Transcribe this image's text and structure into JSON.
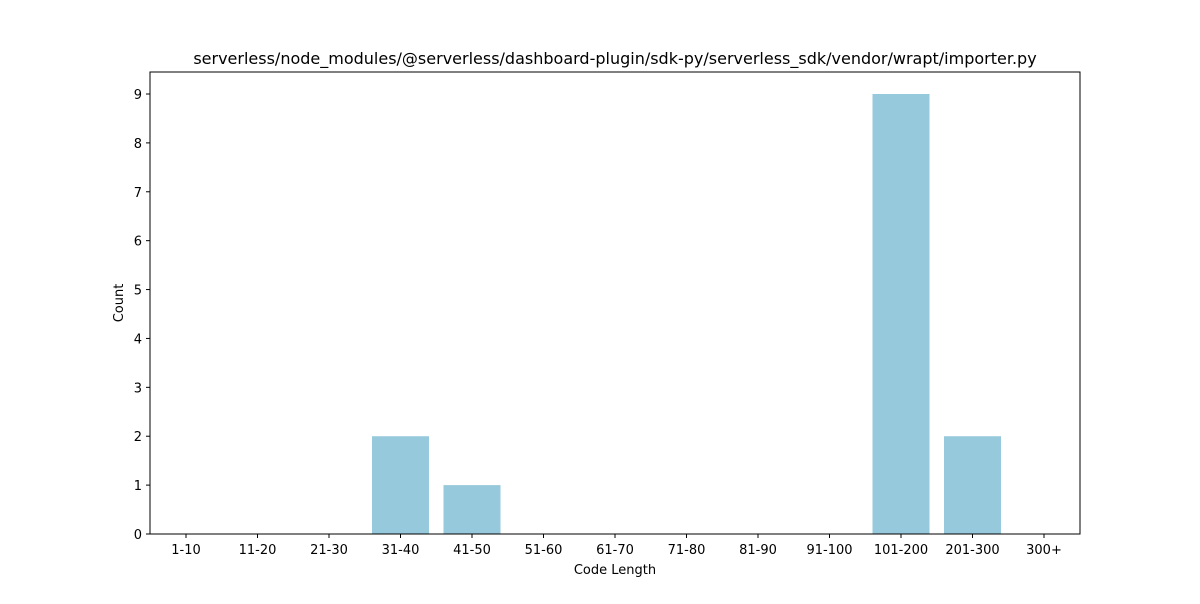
{
  "chart_data": {
    "type": "bar",
    "title": "serverless/node_modules/@serverless/dashboard-plugin/sdk-py/serverless_sdk/vendor/wrapt/importer.py",
    "xlabel": "Code Length",
    "ylabel": "Count",
    "categories": [
      "1-10",
      "11-20",
      "21-30",
      "31-40",
      "41-50",
      "51-60",
      "61-70",
      "71-80",
      "81-90",
      "91-100",
      "101-200",
      "201-300",
      "300+"
    ],
    "values": [
      0,
      0,
      0,
      2,
      1,
      0,
      0,
      0,
      0,
      0,
      9,
      2,
      0
    ],
    "ylim": [
      0,
      9.45
    ],
    "yticks": [
      0,
      1,
      2,
      3,
      4,
      5,
      6,
      7,
      8,
      9
    ],
    "bar_color": "#96c9dc",
    "grid": false,
    "legend": "none"
  }
}
